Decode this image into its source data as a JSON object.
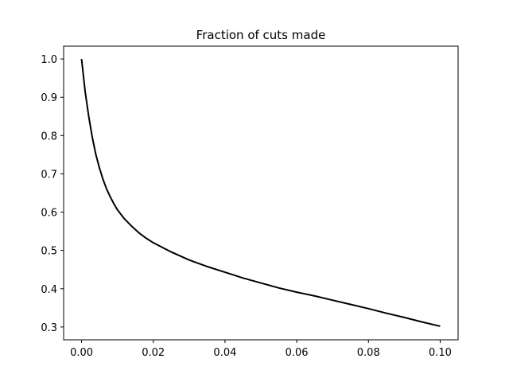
{
  "chart_data": {
    "type": "line",
    "title": "Fraction of cuts made",
    "xlabel": "",
    "ylabel": "",
    "xlim": [
      -0.005,
      0.105
    ],
    "ylim": [
      0.2665,
      1.0335
    ],
    "grid": false,
    "x_ticks": [
      0.0,
      0.02,
      0.04,
      0.06,
      0.08,
      0.1
    ],
    "x_tick_labels": [
      "0.00",
      "0.02",
      "0.04",
      "0.06",
      "0.08",
      "0.10"
    ],
    "y_ticks": [
      0.3,
      0.4,
      0.5,
      0.6,
      0.7,
      0.8,
      0.9,
      1.0
    ],
    "y_tick_labels": [
      "0.3",
      "0.4",
      "0.5",
      "0.6",
      "0.7",
      "0.8",
      "0.9",
      "1.0"
    ],
    "series": [
      {
        "color": "#000000",
        "x": [
          0.0,
          0.001,
          0.002,
          0.003,
          0.004,
          0.005,
          0.006,
          0.007,
          0.008,
          0.009,
          0.01,
          0.012,
          0.014,
          0.016,
          0.018,
          0.02,
          0.025,
          0.03,
          0.035,
          0.04,
          0.045,
          0.05,
          0.055,
          0.06,
          0.065,
          0.07,
          0.075,
          0.08,
          0.085,
          0.09,
          0.095,
          0.1
        ],
        "y": [
          1.0,
          0.915,
          0.85,
          0.795,
          0.75,
          0.715,
          0.685,
          0.66,
          0.64,
          0.622,
          0.606,
          0.582,
          0.563,
          0.546,
          0.532,
          0.52,
          0.496,
          0.475,
          0.458,
          0.443,
          0.428,
          0.415,
          0.402,
          0.391,
          0.381,
          0.37,
          0.359,
          0.348,
          0.336,
          0.325,
          0.313,
          0.302
        ]
      }
    ]
  }
}
